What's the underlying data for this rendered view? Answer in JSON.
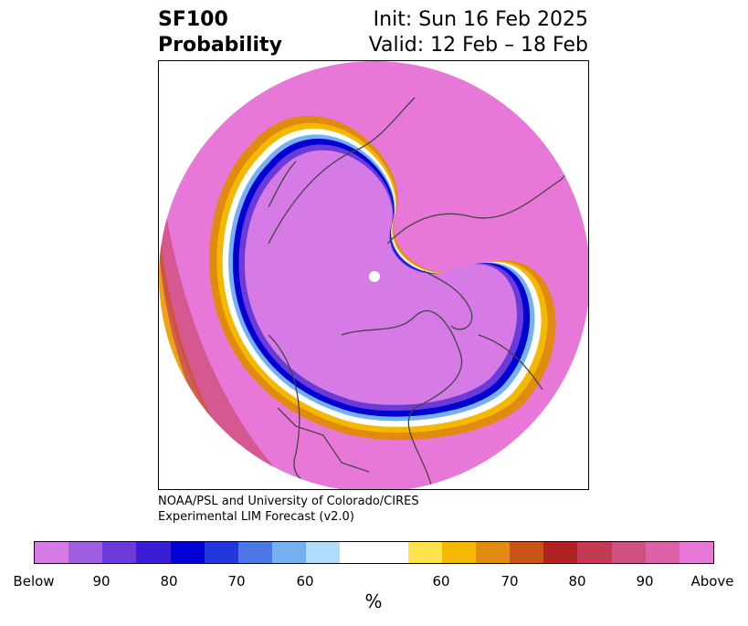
{
  "title": {
    "line1_left": "SF100",
    "line2_left": "Probability",
    "line1_right": "Init: Sun 16 Feb 2025",
    "line2_right": "Valid: 12 Feb – 18 Feb"
  },
  "credit": {
    "line1": "NOAA/PSL and University of Colorado/CIRES",
    "line2": "Experimental LIM Forecast (v2.0)"
  },
  "colorbar": {
    "unit": "%",
    "colors": [
      "#d67ae6",
      "#9e5fe0",
      "#6a3bd8",
      "#3a1ed5",
      "#0000d2",
      "#2338dc",
      "#4e78e6",
      "#74b0f2",
      "#b0ddfb",
      "#ffffff",
      "#ffe34d",
      "#f5b800",
      "#e08a0f",
      "#c85418",
      "#b02322",
      "#c33a55",
      "#cf5080",
      "#db62a8",
      "#e878d8"
    ],
    "labels": [
      "Below",
      "90",
      "80",
      "70",
      "60",
      "60",
      "70",
      "80",
      "90",
      "Above"
    ]
  },
  "map": {
    "background_color": "#e878d8",
    "below_color": "#d67ae6",
    "coastline_color": "#444444"
  }
}
